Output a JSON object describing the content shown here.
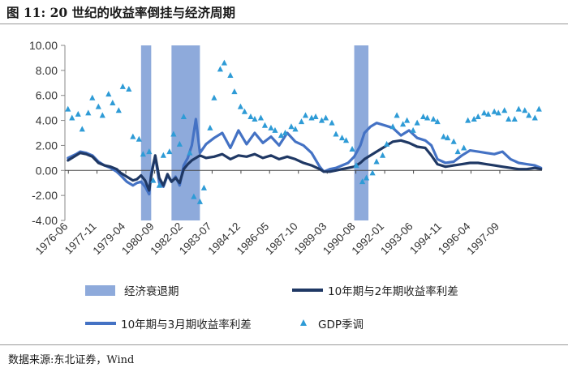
{
  "header": {
    "title": "图 11:  20 世纪的收益率倒挂与经济周期"
  },
  "footer": {
    "source": "数据来源:东北证券，Wind"
  },
  "colors": {
    "recession": "#8eaadb",
    "spread_10y2y": "#1f3864",
    "spread_10y3m": "#4472c4",
    "gdp": "#2e9bd6"
  },
  "chart_data": {
    "type": "line",
    "title": "20 世纪的收益率倒挂与经济周期",
    "xlabel": "",
    "ylabel": "",
    "ylim": [
      -4,
      10
    ],
    "yticks": [
      "10.00",
      "8.00",
      "6.00",
      "4.00",
      "2.00",
      "0.00",
      "-2.00",
      "-4.00"
    ],
    "xlim": [
      1976.25,
      1999.75
    ],
    "xticks": [
      {
        "label": "1976-06",
        "x": 1976.42
      },
      {
        "label": "1977-11",
        "x": 1977.83
      },
      {
        "label": "1979-04",
        "x": 1979.25
      },
      {
        "label": "1980-09",
        "x": 1980.67
      },
      {
        "label": "1982-02",
        "x": 1982.08
      },
      {
        "label": "1983-07",
        "x": 1983.5
      },
      {
        "label": "1984-12",
        "x": 1984.92
      },
      {
        "label": "1986-05",
        "x": 1986.33
      },
      {
        "label": "1987-10",
        "x": 1987.75
      },
      {
        "label": "1989-03",
        "x": 1989.17
      },
      {
        "label": "1990-08",
        "x": 1990.58
      },
      {
        "label": "1992-01",
        "x": 1992.0
      },
      {
        "label": "1993-06",
        "x": 1993.42
      },
      {
        "label": "1994-11",
        "x": 1994.83
      },
      {
        "label": "1996-04",
        "x": 1996.25
      },
      {
        "label": "1997-09",
        "x": 1997.67
      }
    ],
    "recessions": [
      [
        1980.0,
        1980.5
      ],
      [
        1981.5,
        1982.9
      ],
      [
        1990.5,
        1991.2
      ]
    ],
    "legend": {
      "recession": "经济衰退期",
      "spread_10y2y": "10年期与2年期收益率利差",
      "spread_10y3m": "10年期与3月期收益率利差",
      "gdp": "GDP季调"
    },
    "series": [
      {
        "name": "10年期与2年期收益率利差",
        "x": [
          1976.4,
          1976.8,
          1977.0,
          1977.3,
          1977.6,
          1977.9,
          1978.2,
          1978.5,
          1978.8,
          1979.0,
          1979.3,
          1979.6,
          1979.8,
          1980.0,
          1980.2,
          1980.4,
          1980.5,
          1980.6,
          1980.7,
          1980.9,
          1981.1,
          1981.3,
          1981.5,
          1981.7,
          1981.9,
          1982.1,
          1982.3,
          1982.5,
          1982.7,
          1982.9,
          1983.2,
          1983.6,
          1984.0,
          1984.4,
          1984.8,
          1985.2,
          1985.6,
          1986.0,
          1986.4,
          1986.8,
          1987.2,
          1987.6,
          1988.0,
          1988.4,
          1988.8,
          1989.0,
          1989.3,
          1989.6,
          1989.9,
          1990.2,
          1990.5,
          1990.8,
          1991.0,
          1991.3,
          1991.6,
          1992.0,
          1992.4,
          1992.8,
          1993.2,
          1993.6,
          1994.0,
          1994.3,
          1994.6,
          1995.0,
          1995.4,
          1995.8,
          1996.2,
          1996.6,
          1997.0,
          1997.4,
          1997.8,
          1998.2,
          1998.6,
          1999.0,
          1999.4,
          1999.7
        ],
        "values": [
          0.8,
          1.2,
          1.4,
          1.3,
          1.1,
          0.6,
          0.4,
          0.3,
          0.1,
          -0.2,
          -0.5,
          -0.8,
          -0.7,
          -0.4,
          -0.8,
          -1.6,
          -0.5,
          0.4,
          1.2,
          -0.6,
          -1.2,
          -0.3,
          -0.9,
          -0.6,
          -1.0,
          0.1,
          0.5,
          0.8,
          1.0,
          1.2,
          1.0,
          1.1,
          1.3,
          0.9,
          1.2,
          1.1,
          1.3,
          1.0,
          1.2,
          0.9,
          1.1,
          0.9,
          0.6,
          0.4,
          0.1,
          -0.1,
          -0.1,
          0.0,
          0.1,
          0.2,
          0.3,
          0.6,
          0.9,
          1.2,
          1.5,
          1.9,
          2.3,
          2.4,
          2.2,
          1.9,
          1.8,
          1.2,
          0.5,
          0.3,
          0.4,
          0.5,
          0.6,
          0.6,
          0.5,
          0.4,
          0.3,
          0.2,
          0.1,
          0.1,
          0.2,
          0.1
        ]
      },
      {
        "name": "10年期与3月期收益率利差",
        "x": [
          1976.4,
          1976.8,
          1977.0,
          1977.3,
          1977.6,
          1977.9,
          1978.2,
          1978.5,
          1978.8,
          1979.0,
          1979.3,
          1979.6,
          1979.8,
          1980.0,
          1980.2,
          1980.4,
          1980.5,
          1980.6,
          1980.7,
          1980.9,
          1981.1,
          1981.3,
          1981.5,
          1981.7,
          1981.9,
          1982.1,
          1982.3,
          1982.5,
          1982.7,
          1982.9,
          1983.2,
          1983.6,
          1984.0,
          1984.4,
          1984.8,
          1985.2,
          1985.6,
          1986.0,
          1986.4,
          1986.8,
          1987.2,
          1987.6,
          1988.0,
          1988.4,
          1988.8,
          1989.0,
          1989.3,
          1989.6,
          1989.9,
          1990.2,
          1990.5,
          1990.8,
          1991.0,
          1991.3,
          1991.6,
          1992.0,
          1992.4,
          1992.8,
          1993.2,
          1993.6,
          1994.0,
          1994.3,
          1994.6,
          1995.0,
          1995.4,
          1995.8,
          1996.2,
          1996.6,
          1997.0,
          1997.4,
          1997.8,
          1998.2,
          1998.6,
          1999.0,
          1999.4,
          1999.7
        ],
        "values": [
          1.0,
          1.3,
          1.5,
          1.4,
          1.2,
          0.7,
          0.4,
          0.2,
          -0.1,
          -0.4,
          -0.9,
          -1.2,
          -1.0,
          -0.9,
          -1.3,
          -1.9,
          -0.2,
          0.5,
          1.1,
          -1.0,
          -1.3,
          -0.4,
          -0.9,
          -0.5,
          -1.2,
          0.4,
          1.0,
          2.0,
          4.1,
          1.4,
          2.1,
          2.6,
          3.0,
          1.8,
          3.2,
          2.1,
          3.0,
          2.2,
          2.7,
          2.0,
          3.0,
          2.3,
          2.0,
          1.4,
          0.3,
          -0.1,
          0.1,
          0.2,
          0.4,
          0.6,
          1.1,
          2.0,
          3.0,
          3.5,
          3.8,
          3.6,
          3.4,
          2.8,
          3.2,
          2.6,
          2.4,
          2.0,
          0.9,
          0.6,
          0.7,
          1.2,
          1.6,
          1.5,
          1.4,
          1.3,
          1.5,
          0.9,
          0.6,
          0.5,
          0.4,
          0.2
        ]
      },
      {
        "name": "GDP季调",
        "x": [
          1976.4,
          1976.6,
          1976.9,
          1977.1,
          1977.4,
          1977.6,
          1977.9,
          1978.1,
          1978.4,
          1978.6,
          1978.9,
          1979.1,
          1979.4,
          1979.6,
          1979.9,
          1980.1,
          1980.4,
          1980.6,
          1980.9,
          1981.1,
          1981.4,
          1981.6,
          1981.9,
          1982.1,
          1982.4,
          1982.6,
          1982.9,
          1983.1,
          1983.4,
          1983.6,
          1983.9,
          1984.1,
          1984.4,
          1984.6,
          1984.9,
          1985.1,
          1985.4,
          1985.6,
          1985.9,
          1986.1,
          1986.4,
          1986.6,
          1986.9,
          1987.1,
          1987.4,
          1987.6,
          1987.9,
          1988.1,
          1988.4,
          1988.6,
          1988.9,
          1989.1,
          1989.4,
          1989.6,
          1989.9,
          1990.1,
          1990.4,
          1990.6,
          1990.9,
          1991.1,
          1991.4,
          1991.6,
          1991.9,
          1992.1,
          1992.4,
          1992.6,
          1992.9,
          1993.1,
          1993.4,
          1993.6,
          1993.9,
          1994.1,
          1994.4,
          1994.6,
          1994.9,
          1995.1,
          1995.4,
          1995.6,
          1995.9,
          1996.1,
          1996.4,
          1996.6,
          1996.9,
          1997.1,
          1997.4,
          1997.6,
          1997.9,
          1998.1,
          1998.4,
          1998.6,
          1998.9,
          1999.1,
          1999.4,
          1999.6
        ],
        "values": [
          4.9,
          4.2,
          4.5,
          3.3,
          4.6,
          5.8,
          5.1,
          4.4,
          6.1,
          5.4,
          4.8,
          6.7,
          6.5,
          2.7,
          2.5,
          1.3,
          1.5,
          -0.8,
          -1.2,
          1.2,
          1.5,
          2.9,
          2.1,
          4.3,
          1.4,
          -2.1,
          -2.5,
          -1.4,
          3.4,
          5.8,
          8.1,
          8.6,
          7.6,
          6.3,
          5.1,
          4.7,
          4.3,
          4.1,
          4.2,
          3.6,
          3.4,
          3.2,
          2.8,
          3.0,
          3.5,
          3.3,
          3.9,
          4.4,
          4.2,
          4.3,
          4.0,
          4.2,
          3.8,
          2.9,
          2.6,
          2.4,
          1.7,
          0.4,
          -0.9,
          -0.6,
          -0.2,
          0.7,
          1.2,
          2.1,
          3.5,
          4.4,
          3.7,
          4.0,
          3.2,
          3.8,
          4.3,
          4.2,
          4.1,
          3.9,
          2.7,
          2.6,
          2.3,
          1.5,
          1.8,
          4.0,
          4.1,
          4.3,
          4.6,
          4.5,
          4.7,
          4.6,
          4.8,
          4.1,
          4.1,
          4.9,
          4.8,
          4.4,
          4.2,
          4.9
        ]
      }
    ]
  }
}
